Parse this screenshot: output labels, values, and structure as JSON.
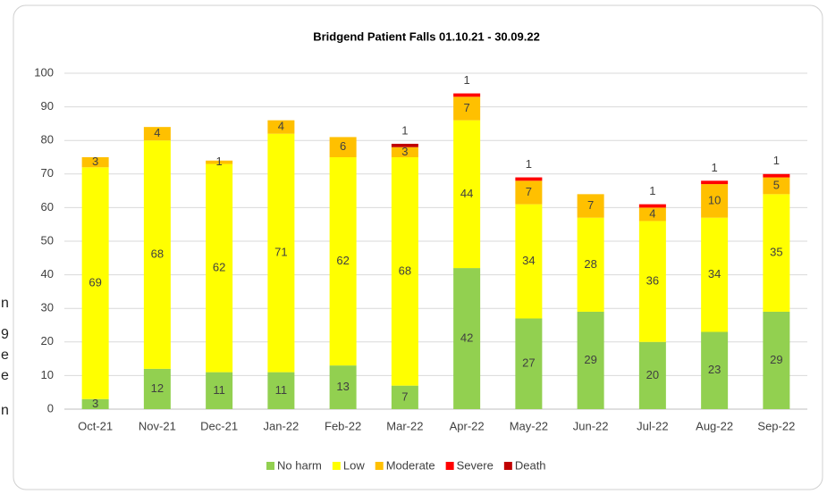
{
  "page_fragments": [
    "n",
    "9",
    "e",
    "e",
    "n"
  ],
  "chart_data": {
    "type": "stacked-bar",
    "title": "Bridgend Patient Falls 01.10.21 - 30.09.22",
    "categories": [
      "Oct-21",
      "Nov-21",
      "Dec-21",
      "Jan-22",
      "Feb-22",
      "Mar-22",
      "Apr-22",
      "May-22",
      "Jun-22",
      "Jul-22",
      "Aug-22",
      "Sep-22"
    ],
    "series": [
      {
        "name": "No harm",
        "color": "#92d050",
        "values": [
          3,
          12,
          11,
          11,
          13,
          7,
          42,
          27,
          29,
          20,
          23,
          29
        ]
      },
      {
        "name": "Low",
        "color": "#ffff00",
        "values": [
          69,
          68,
          62,
          71,
          62,
          68,
          44,
          34,
          28,
          36,
          34,
          35
        ]
      },
      {
        "name": "Moderate",
        "color": "#ffc000",
        "values": [
          3,
          4,
          1,
          4,
          6,
          3,
          7,
          7,
          7,
          4,
          10,
          5
        ]
      },
      {
        "name": "Severe",
        "color": "#ff0000",
        "values": [
          0,
          0,
          0,
          0,
          0,
          0,
          1,
          1,
          0,
          1,
          1,
          1
        ]
      },
      {
        "name": "Death",
        "color": "#c00000",
        "values": [
          0,
          0,
          0,
          0,
          0,
          1,
          0,
          0,
          0,
          0,
          0,
          0
        ]
      }
    ],
    "ylim": [
      0,
      100
    ],
    "yticks": [
      0,
      10,
      20,
      30,
      40,
      50,
      60,
      70,
      80,
      90,
      100
    ],
    "grid": true,
    "legend": "bottom"
  }
}
